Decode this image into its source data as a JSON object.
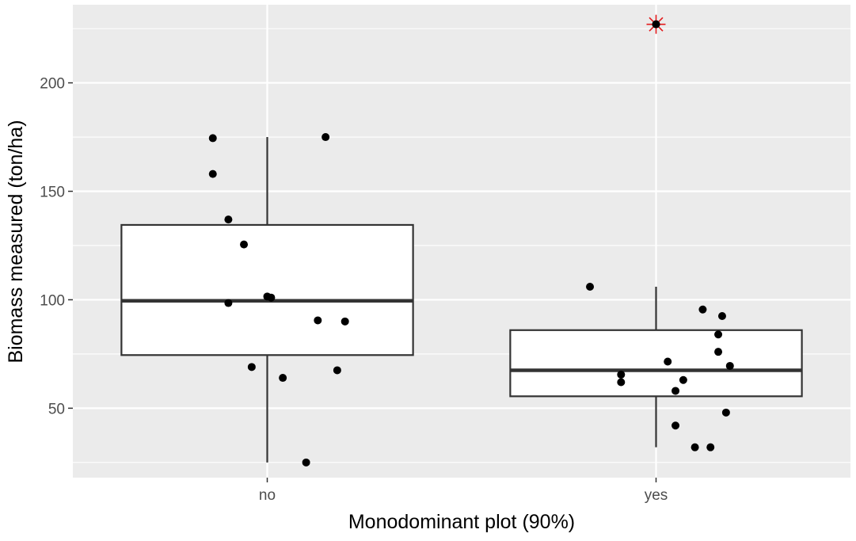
{
  "chart_data": {
    "type": "boxplot",
    "xlabel": "Monodominant plot (90%)",
    "ylabel": "Biomass measured (ton/ha)",
    "categories": [
      "no",
      "yes"
    ],
    "ylim": [
      18,
      236
    ],
    "y_ticks": [
      50,
      100,
      150,
      200
    ],
    "y_minor_ticks": [
      25,
      75,
      125,
      175,
      225
    ],
    "grid": true,
    "background": "#ebebeb",
    "box_fill": "#ffffff",
    "box_stroke": "#333333",
    "point_color": "#000000",
    "outlier_marker_color": "#e31a1c",
    "boxes": [
      {
        "category": "no",
        "whisker_low": 25,
        "q1": 74.5,
        "median": 99.5,
        "q3": 134.5,
        "whisker_high": 175
      },
      {
        "category": "yes",
        "whisker_low": 32,
        "q1": 55.5,
        "median": 67.5,
        "q3": 86,
        "whisker_high": 106
      }
    ],
    "points": [
      {
        "category": "no",
        "jitter": -0.14,
        "y": 174.5
      },
      {
        "category": "no",
        "jitter": 0.15,
        "y": 175
      },
      {
        "category": "no",
        "jitter": -0.14,
        "y": 158
      },
      {
        "category": "no",
        "jitter": -0.1,
        "y": 137
      },
      {
        "category": "no",
        "jitter": -0.06,
        "y": 125.5
      },
      {
        "category": "no",
        "jitter": 0.0,
        "y": 101.5
      },
      {
        "category": "no",
        "jitter": 0.01,
        "y": 101
      },
      {
        "category": "no",
        "jitter": -0.1,
        "y": 98.5
      },
      {
        "category": "no",
        "jitter": 0.13,
        "y": 90.5
      },
      {
        "category": "no",
        "jitter": 0.2,
        "y": 90
      },
      {
        "category": "no",
        "jitter": -0.04,
        "y": 69
      },
      {
        "category": "no",
        "jitter": 0.04,
        "y": 64
      },
      {
        "category": "no",
        "jitter": 0.18,
        "y": 67.5
      },
      {
        "category": "no",
        "jitter": 0.1,
        "y": 25
      },
      {
        "category": "yes",
        "jitter": 0.0,
        "y": 227
      },
      {
        "category": "yes",
        "jitter": -0.17,
        "y": 106
      },
      {
        "category": "yes",
        "jitter": 0.12,
        "y": 95.5
      },
      {
        "category": "yes",
        "jitter": 0.17,
        "y": 92.5
      },
      {
        "category": "yes",
        "jitter": 0.16,
        "y": 84
      },
      {
        "category": "yes",
        "jitter": 0.16,
        "y": 76
      },
      {
        "category": "yes",
        "jitter": 0.03,
        "y": 71.5
      },
      {
        "category": "yes",
        "jitter": 0.19,
        "y": 69.5
      },
      {
        "category": "yes",
        "jitter": -0.09,
        "y": 65.5
      },
      {
        "category": "yes",
        "jitter": -0.09,
        "y": 62
      },
      {
        "category": "yes",
        "jitter": 0.07,
        "y": 63
      },
      {
        "category": "yes",
        "jitter": 0.05,
        "y": 58
      },
      {
        "category": "yes",
        "jitter": 0.18,
        "y": 48
      },
      {
        "category": "yes",
        "jitter": 0.05,
        "y": 42
      },
      {
        "category": "yes",
        "jitter": 0.1,
        "y": 32
      },
      {
        "category": "yes",
        "jitter": 0.14,
        "y": 32
      }
    ],
    "highlighted_outlier": {
      "category": "yes",
      "y": 227
    }
  }
}
